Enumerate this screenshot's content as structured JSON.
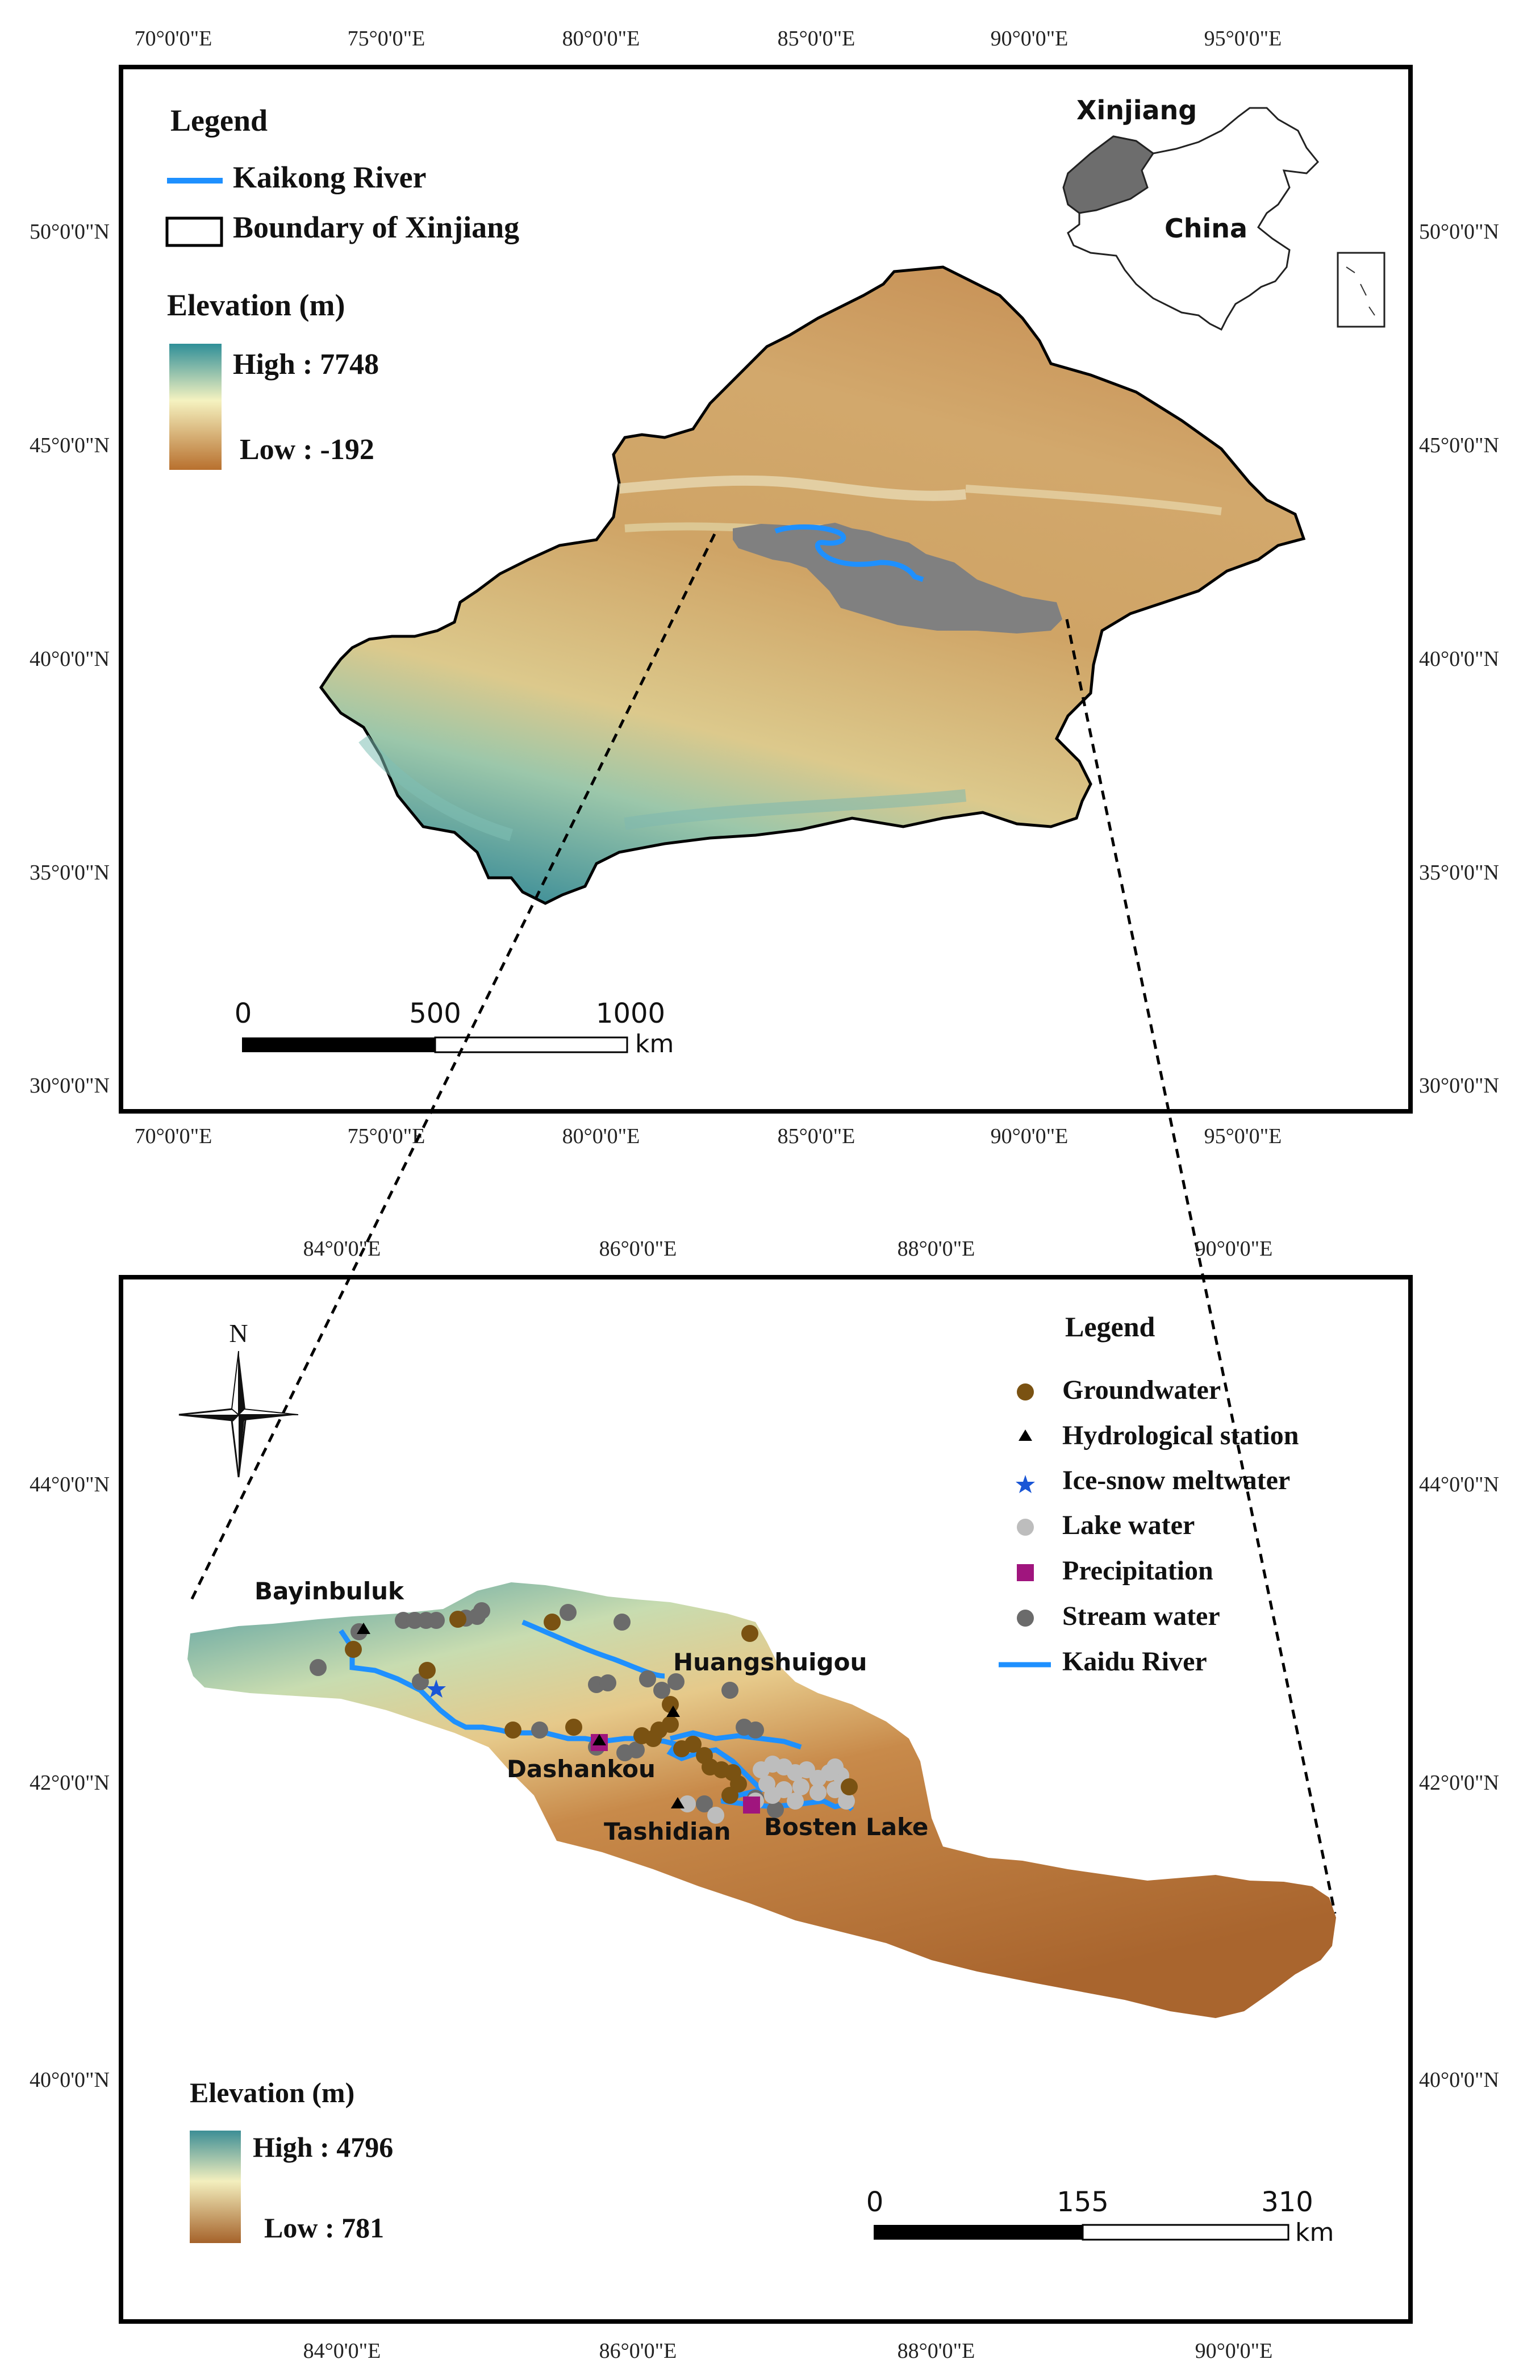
{
  "top_map": {
    "x_ticks": [
      "70°0'0\"E",
      "75°0'0\"E",
      "80°0'0\"E",
      "85°0'0\"E",
      "90°0'0\"E",
      "95°0'0\"E"
    ],
    "y_ticks": [
      "50°0'0\"N",
      "45°0'0\"N",
      "40°0'0\"N",
      "35°0'0\"N",
      "30°0'0\"N"
    ],
    "legend": {
      "title": "Legend",
      "river": "Kaikong River",
      "boundary": "Boundary of Xinjiang",
      "elevation_title": "Elevation (m)",
      "high": "High : 7748",
      "low": "Low : -192"
    },
    "inset": {
      "region_label": "Xinjiang",
      "country_label": "China"
    },
    "scale_bar": {
      "zero": "0",
      "mid": "500",
      "max": "1000",
      "unit": "km"
    }
  },
  "bottom_map": {
    "x_ticks": [
      "84°0'0\"E",
      "86°0'0\"E",
      "88°0'0\"E",
      "90°0'0\"E"
    ],
    "y_ticks": [
      "44°0'0\"N",
      "42°0'0\"N",
      "40°0'0\"N"
    ],
    "north_arrow": "N",
    "legend": {
      "title": "Legend",
      "items": [
        "Groundwater",
        "Hydrological station",
        "Ice-snow meltwater",
        "Lake water",
        "Precipitation",
        "Stream water",
        "Kaidu River"
      ]
    },
    "place_labels": {
      "bayinbuluk": "Bayinbuluk",
      "huangshuigou": "Huangshuigou",
      "dashankou": "Dashankou",
      "tashidian": "Tashidian",
      "bosten": "Bosten Lake"
    },
    "elevation": {
      "title": "Elevation (m)",
      "high": "High : 4796",
      "low": "Low : 781"
    },
    "scale_bar": {
      "zero": "0",
      "mid": "155",
      "max": "310",
      "unit": "km"
    }
  },
  "colors": {
    "river": "#1e90ff",
    "study_area": "#808080",
    "groundwater": "#7a5212",
    "hydrological_station": "#000000",
    "ice_snow": "#1a56d6",
    "lake_water": "#bdbdbd",
    "precipitation": "#a0157e",
    "stream_water": "#6b6b6b",
    "elev_high": "#2f8f98",
    "elev_mid": "#f5f2c0",
    "elev_low": "#b8702e",
    "inset_region": "#6d6d6d"
  }
}
